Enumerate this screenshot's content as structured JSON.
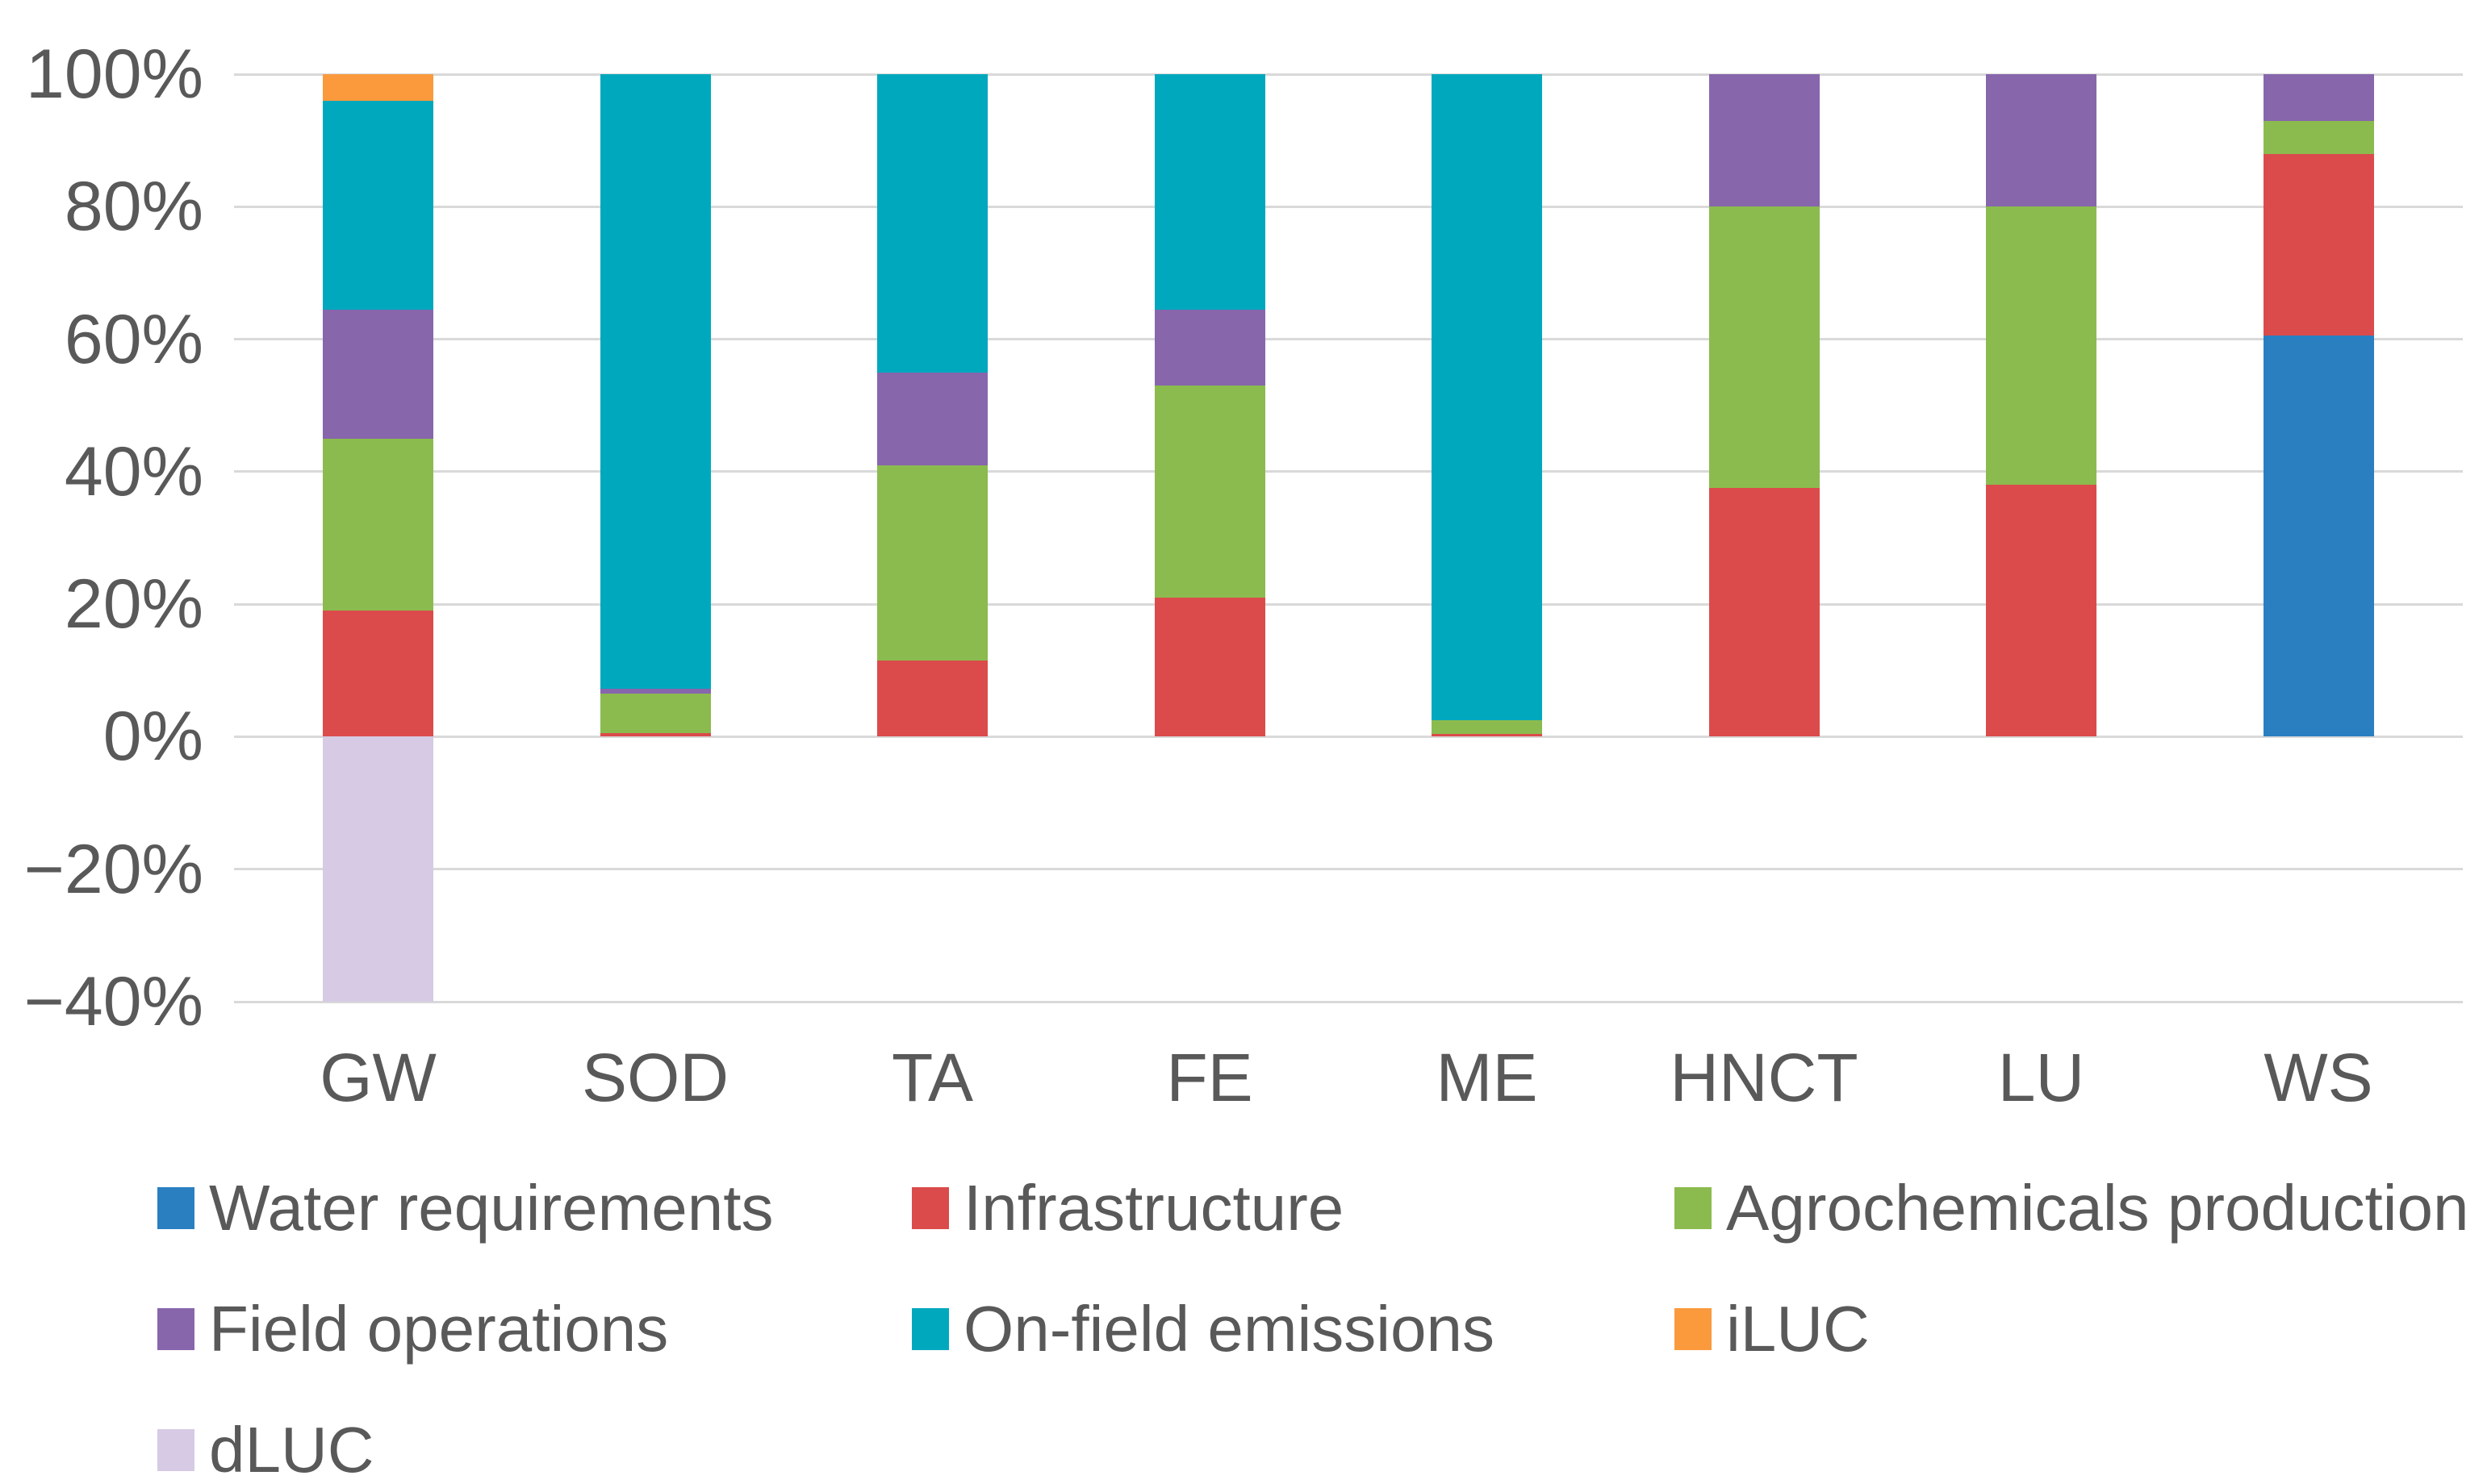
{
  "page": {
    "background_color": "#ffffff",
    "text_color": "#595959",
    "gridline_color": "#d9d9d9"
  },
  "chart_data": {
    "type": "bar",
    "stacked": true,
    "orientation": "vertical",
    "title": "",
    "xlabel": "",
    "ylabel": "",
    "grid": true,
    "legend_position": "bottom",
    "ylim": [
      -40,
      100
    ],
    "ytick_step": 20,
    "categories": [
      "GW",
      "SOD",
      "TA",
      "FE",
      "ME",
      "HNCT",
      "LU",
      "WS"
    ],
    "yticks": [
      {
        "value": 100,
        "label": "100%"
      },
      {
        "value": 80,
        "label": "80%"
      },
      {
        "value": 60,
        "label": "60%"
      },
      {
        "value": 40,
        "label": "40%"
      },
      {
        "value": 20,
        "label": "20%"
      },
      {
        "value": 0,
        "label": "0%"
      },
      {
        "value": -20,
        "label": "−20%"
      },
      {
        "value": -40,
        "label": "−40%"
      }
    ],
    "series": [
      {
        "name": "Water requirements",
        "color": "#2A7FC1",
        "values": [
          0,
          0,
          0,
          0,
          0,
          0,
          0,
          60.5
        ]
      },
      {
        "name": "Infrastructure",
        "color": "#DB4B4B",
        "values": [
          19,
          0.5,
          11.5,
          21,
          0.4,
          37.5,
          38,
          27.5
        ]
      },
      {
        "name": "Agrochemicals production",
        "color": "#8BBB4E",
        "values": [
          26,
          6,
          29.5,
          32,
          2.1,
          42.5,
          42,
          5
        ]
      },
      {
        "name": "Field operations",
        "color": "#8766AC",
        "values": [
          19.5,
          0.7,
          14,
          11.5,
          0,
          20,
          20,
          7
        ]
      },
      {
        "name": "On-field emissions",
        "color": "#00A8BE",
        "values": [
          31.5,
          92.8,
          45,
          35.5,
          97.5,
          0,
          0,
          0
        ]
      },
      {
        "name": "iLUC",
        "color": "#FA9A3D",
        "values": [
          4,
          0,
          0,
          0,
          0,
          0,
          0,
          0
        ]
      },
      {
        "name": "dLUC",
        "color": "#D6CAE4",
        "values": [
          -40,
          0,
          0,
          0,
          0,
          0,
          0,
          0
        ]
      }
    ]
  }
}
